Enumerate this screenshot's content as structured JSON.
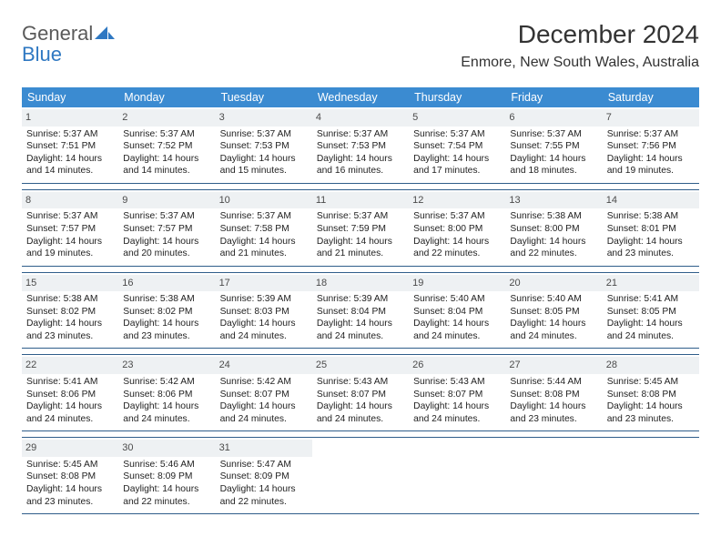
{
  "brand": {
    "part1": "General",
    "part2": "Blue"
  },
  "title": "December 2024",
  "location": "Enmore, New South Wales, Australia",
  "colors": {
    "header_bg": "#3b8bd1",
    "rule": "#2f5d8a",
    "daynum_bg": "#eef1f3",
    "text": "#222222",
    "brand_blue": "#2f78c2"
  },
  "dayNames": [
    "Sunday",
    "Monday",
    "Tuesday",
    "Wednesday",
    "Thursday",
    "Friday",
    "Saturday"
  ],
  "weeks": [
    [
      {
        "n": "1",
        "sr": "5:37 AM",
        "ss": "7:51 PM",
        "dl": "14 hours and 14 minutes."
      },
      {
        "n": "2",
        "sr": "5:37 AM",
        "ss": "7:52 PM",
        "dl": "14 hours and 14 minutes."
      },
      {
        "n": "3",
        "sr": "5:37 AM",
        "ss": "7:53 PM",
        "dl": "14 hours and 15 minutes."
      },
      {
        "n": "4",
        "sr": "5:37 AM",
        "ss": "7:53 PM",
        "dl": "14 hours and 16 minutes."
      },
      {
        "n": "5",
        "sr": "5:37 AM",
        "ss": "7:54 PM",
        "dl": "14 hours and 17 minutes."
      },
      {
        "n": "6",
        "sr": "5:37 AM",
        "ss": "7:55 PM",
        "dl": "14 hours and 18 minutes."
      },
      {
        "n": "7",
        "sr": "5:37 AM",
        "ss": "7:56 PM",
        "dl": "14 hours and 19 minutes."
      }
    ],
    [
      {
        "n": "8",
        "sr": "5:37 AM",
        "ss": "7:57 PM",
        "dl": "14 hours and 19 minutes."
      },
      {
        "n": "9",
        "sr": "5:37 AM",
        "ss": "7:57 PM",
        "dl": "14 hours and 20 minutes."
      },
      {
        "n": "10",
        "sr": "5:37 AM",
        "ss": "7:58 PM",
        "dl": "14 hours and 21 minutes."
      },
      {
        "n": "11",
        "sr": "5:37 AM",
        "ss": "7:59 PM",
        "dl": "14 hours and 21 minutes."
      },
      {
        "n": "12",
        "sr": "5:37 AM",
        "ss": "8:00 PM",
        "dl": "14 hours and 22 minutes."
      },
      {
        "n": "13",
        "sr": "5:38 AM",
        "ss": "8:00 PM",
        "dl": "14 hours and 22 minutes."
      },
      {
        "n": "14",
        "sr": "5:38 AM",
        "ss": "8:01 PM",
        "dl": "14 hours and 23 minutes."
      }
    ],
    [
      {
        "n": "15",
        "sr": "5:38 AM",
        "ss": "8:02 PM",
        "dl": "14 hours and 23 minutes."
      },
      {
        "n": "16",
        "sr": "5:38 AM",
        "ss": "8:02 PM",
        "dl": "14 hours and 23 minutes."
      },
      {
        "n": "17",
        "sr": "5:39 AM",
        "ss": "8:03 PM",
        "dl": "14 hours and 24 minutes."
      },
      {
        "n": "18",
        "sr": "5:39 AM",
        "ss": "8:04 PM",
        "dl": "14 hours and 24 minutes."
      },
      {
        "n": "19",
        "sr": "5:40 AM",
        "ss": "8:04 PM",
        "dl": "14 hours and 24 minutes."
      },
      {
        "n": "20",
        "sr": "5:40 AM",
        "ss": "8:05 PM",
        "dl": "14 hours and 24 minutes."
      },
      {
        "n": "21",
        "sr": "5:41 AM",
        "ss": "8:05 PM",
        "dl": "14 hours and 24 minutes."
      }
    ],
    [
      {
        "n": "22",
        "sr": "5:41 AM",
        "ss": "8:06 PM",
        "dl": "14 hours and 24 minutes."
      },
      {
        "n": "23",
        "sr": "5:42 AM",
        "ss": "8:06 PM",
        "dl": "14 hours and 24 minutes."
      },
      {
        "n": "24",
        "sr": "5:42 AM",
        "ss": "8:07 PM",
        "dl": "14 hours and 24 minutes."
      },
      {
        "n": "25",
        "sr": "5:43 AM",
        "ss": "8:07 PM",
        "dl": "14 hours and 24 minutes."
      },
      {
        "n": "26",
        "sr": "5:43 AM",
        "ss": "8:07 PM",
        "dl": "14 hours and 24 minutes."
      },
      {
        "n": "27",
        "sr": "5:44 AM",
        "ss": "8:08 PM",
        "dl": "14 hours and 23 minutes."
      },
      {
        "n": "28",
        "sr": "5:45 AM",
        "ss": "8:08 PM",
        "dl": "14 hours and 23 minutes."
      }
    ],
    [
      {
        "n": "29",
        "sr": "5:45 AM",
        "ss": "8:08 PM",
        "dl": "14 hours and 23 minutes."
      },
      {
        "n": "30",
        "sr": "5:46 AM",
        "ss": "8:09 PM",
        "dl": "14 hours and 22 minutes."
      },
      {
        "n": "31",
        "sr": "5:47 AM",
        "ss": "8:09 PM",
        "dl": "14 hours and 22 minutes."
      },
      null,
      null,
      null,
      null
    ]
  ],
  "labels": {
    "sunrise": "Sunrise:",
    "sunset": "Sunset:",
    "daylight": "Daylight:"
  }
}
